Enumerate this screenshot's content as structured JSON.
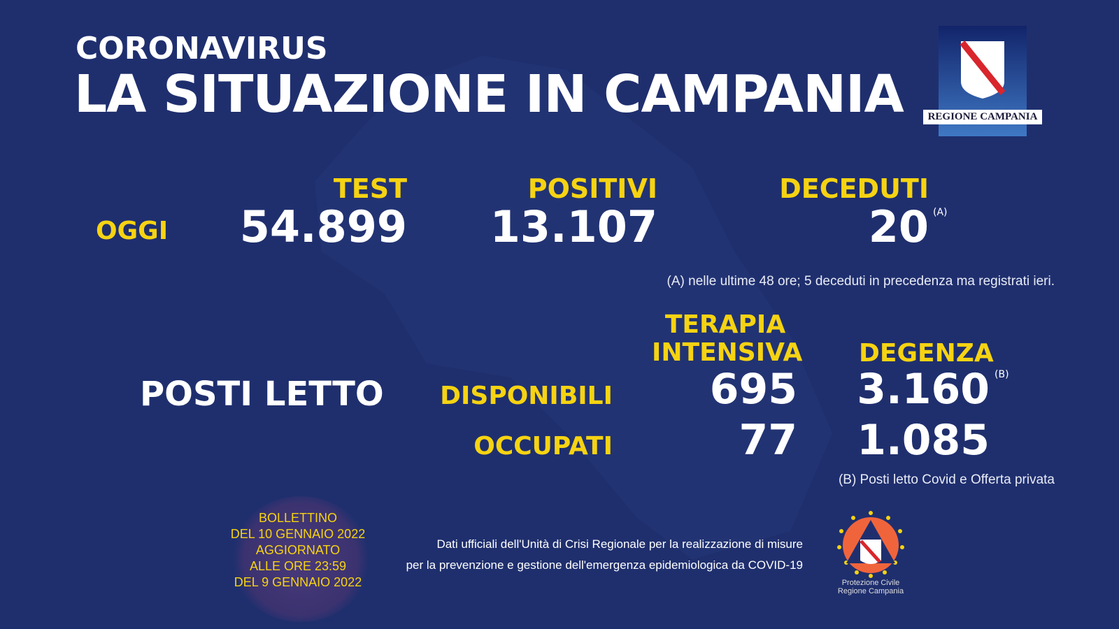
{
  "header": {
    "kicker": "CORONAVIRUS",
    "title": "LA SITUAZIONE IN CAMPANIA"
  },
  "logo": {
    "text": "REGIONE CAMPANIA"
  },
  "today": {
    "label": "OGGI",
    "test": {
      "label": "TEST",
      "value": "54.899"
    },
    "positivi": {
      "label": "POSITIVI",
      "value": "13.107"
    },
    "deceduti": {
      "label": "DECEDUTI",
      "value": "20",
      "note_mark": "(A)"
    },
    "note": "(A) nelle ultime 48 ore; 5 deceduti in precedenza ma registrati ieri."
  },
  "beds": {
    "label": "POSTI LETTO",
    "col1": "TERAPIA INTENSIVA",
    "col2": "DEGENZA",
    "disponibili": {
      "label": "DISPONIBILI",
      "ti": "695",
      "degenza": "3.160",
      "note_mark": "(B)"
    },
    "occupati": {
      "label": "OCCUPATI",
      "ti": "77",
      "degenza": "1.085"
    },
    "note": "(B) Posti letto Covid e Offerta privata"
  },
  "bulletin": {
    "lines": [
      "BOLLETTINO",
      "DEL 10 GENNAIO 2022",
      "AGGIORNATO",
      "ALLE ORE 23:59",
      "DEL 9 GENNAIO 2022"
    ]
  },
  "source": {
    "line1": "Dati ufficiali dell'Unità di Crisi Regionale per la realizzazione di misure",
    "line2": "per la prevenzione e gestione dell'emergenza epidemiologica da COVID-19"
  },
  "civil_protection": {
    "line1": "Protezione Civile",
    "line2": "Regione Campania"
  },
  "colors": {
    "background": "#1f2f6e",
    "accent": "#f6d312"
  }
}
